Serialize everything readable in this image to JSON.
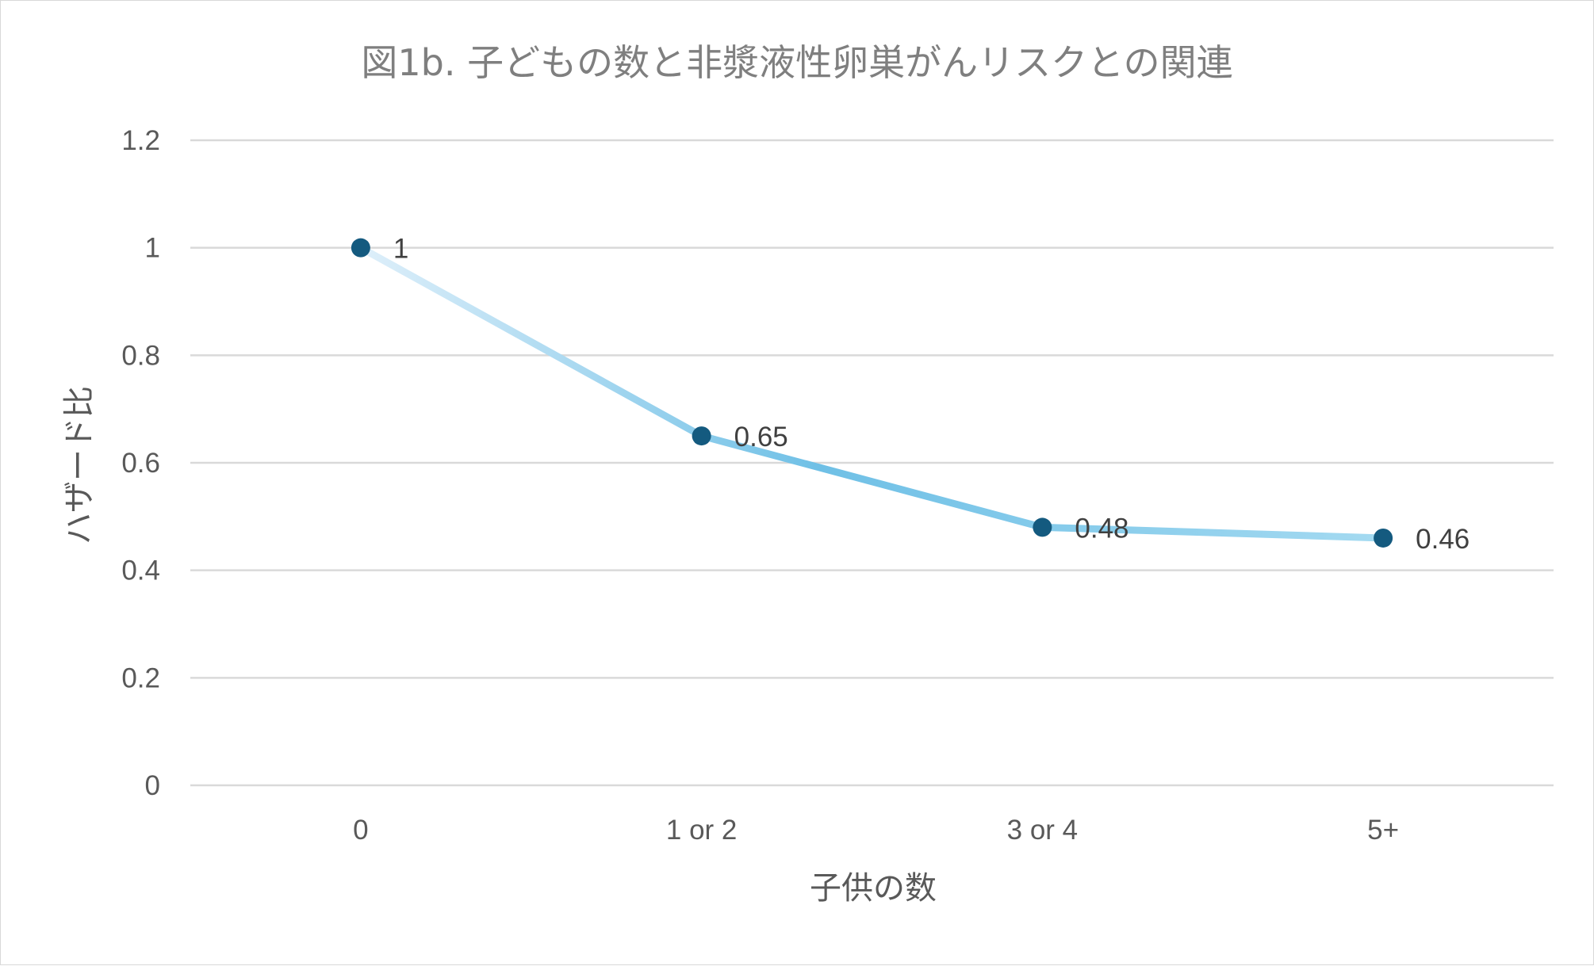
{
  "chart_data": {
    "type": "line",
    "title": "図1b. 子どもの数と非漿液性卵巣がんリスクとの関連",
    "xlabel": "子供の数",
    "ylabel": "ハザード比",
    "categories": [
      "0",
      "1 or 2",
      "3 or 4",
      "5+"
    ],
    "series": [
      {
        "values": [
          1,
          0.65,
          0.48,
          0.46
        ],
        "data_labels": [
          "1",
          "0.65",
          "0.48",
          "0.46"
        ]
      }
    ],
    "ylim": [
      0,
      1.2
    ],
    "yticks": [
      "0",
      "0.2",
      "0.4",
      "0.6",
      "0.8",
      "1",
      "1.2"
    ],
    "grid": true,
    "legend": "none",
    "colors": {
      "line_start": "#deeffa",
      "line_mid": "#6fc0e6",
      "line_end": "#a4daf1",
      "marker": "#145a7f",
      "grid": "#d9d9d9"
    }
  }
}
